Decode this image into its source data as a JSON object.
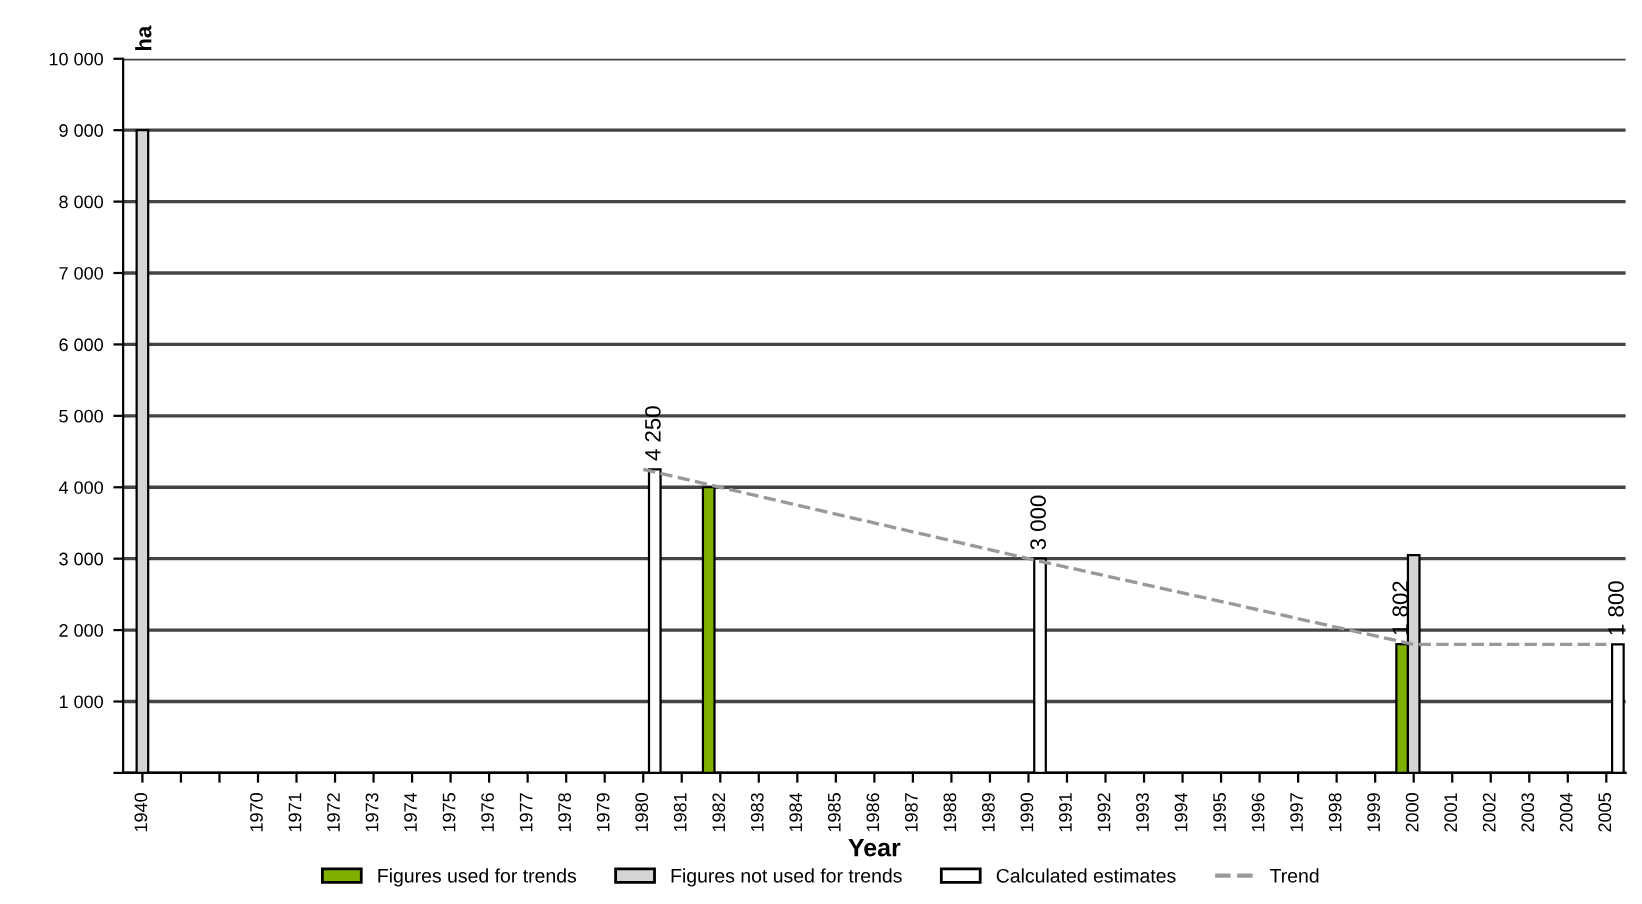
{
  "chart_data": {
    "type": "bar",
    "xlabel": "Year",
    "ylabel": "ha",
    "categories": [
      "1940",
      null,
      null,
      "1970",
      "1971",
      "1972",
      "1973",
      "1974",
      "1975",
      "1976",
      "1977",
      "1978",
      "1979",
      "1980",
      "1981",
      "1982",
      "1983",
      "1984",
      "1985",
      "1986",
      "1987",
      "1988",
      "1989",
      "1990",
      "1991",
      "1992",
      "1993",
      "1994",
      "1995",
      "1996",
      "1997",
      "1998",
      "1999",
      "2000",
      "2001",
      "2002",
      "2003",
      "2004",
      "2005"
    ],
    "series": [
      {
        "name": "Figures used for trends",
        "color": "#7fb000",
        "values": [
          null,
          null,
          null,
          null,
          null,
          null,
          null,
          null,
          null,
          null,
          null,
          null,
          null,
          null,
          null,
          4000,
          null,
          null,
          null,
          null,
          null,
          null,
          null,
          null,
          null,
          null,
          null,
          null,
          null,
          null,
          null,
          null,
          null,
          1802,
          null,
          null,
          null,
          null,
          null
        ],
        "value_labels": [
          null,
          null,
          null,
          null,
          null,
          null,
          null,
          null,
          null,
          null,
          null,
          null,
          null,
          null,
          null,
          null,
          null,
          null,
          null,
          null,
          null,
          null,
          null,
          null,
          null,
          null,
          null,
          null,
          null,
          null,
          null,
          null,
          null,
          "1 802",
          null,
          null,
          null,
          null,
          null
        ]
      },
      {
        "name": "Figures not used for trends",
        "color": "#d4d4d4",
        "values": [
          9000,
          null,
          null,
          null,
          null,
          null,
          null,
          null,
          null,
          null,
          null,
          null,
          null,
          null,
          null,
          null,
          null,
          null,
          null,
          null,
          null,
          null,
          null,
          null,
          null,
          null,
          null,
          null,
          null,
          null,
          null,
          null,
          null,
          3050,
          null,
          null,
          null,
          null,
          null
        ]
      },
      {
        "name": "Calculated estimates",
        "color": "#ffffff",
        "values": [
          null,
          null,
          null,
          null,
          null,
          null,
          null,
          null,
          null,
          null,
          null,
          null,
          null,
          4250,
          null,
          null,
          null,
          null,
          null,
          null,
          null,
          null,
          null,
          3000,
          null,
          null,
          null,
          null,
          null,
          null,
          null,
          null,
          null,
          null,
          null,
          null,
          null,
          null,
          1800
        ],
        "value_labels": [
          null,
          null,
          null,
          null,
          null,
          null,
          null,
          null,
          null,
          null,
          null,
          null,
          null,
          "4 250",
          null,
          null,
          null,
          null,
          null,
          null,
          null,
          null,
          null,
          "3 000",
          null,
          null,
          null,
          null,
          null,
          null,
          null,
          null,
          null,
          null,
          null,
          null,
          null,
          null,
          "1 800"
        ]
      },
      {
        "name": "Trend",
        "type": "line",
        "color": "#999999",
        "line_style": "dashed",
        "marker": "none",
        "values": [
          null,
          null,
          null,
          null,
          null,
          null,
          null,
          null,
          null,
          null,
          null,
          null,
          null,
          4250,
          null,
          4000,
          null,
          null,
          null,
          null,
          null,
          null,
          null,
          3000,
          null,
          null,
          null,
          null,
          null,
          null,
          null,
          null,
          null,
          1800,
          null,
          null,
          null,
          null,
          1800
        ]
      }
    ],
    "ylim": [
      0,
      10000
    ],
    "yticks": [
      {
        "value": 0,
        "label": null
      },
      {
        "value": 1000,
        "label": "1 000"
      },
      {
        "value": 2000,
        "label": "2 000"
      },
      {
        "value": 3000,
        "label": "3 000"
      },
      {
        "value": 4000,
        "label": "4 000"
      },
      {
        "value": 5000,
        "label": "5 000"
      },
      {
        "value": 6000,
        "label": "6 000"
      },
      {
        "value": 7000,
        "label": "7 000"
      },
      {
        "value": 8000,
        "label": "8 000"
      },
      {
        "value": 9000,
        "label": "9 000"
      },
      {
        "value": 10000,
        "label": "10 000"
      }
    ],
    "grid": "y",
    "legend": "bottom"
  }
}
